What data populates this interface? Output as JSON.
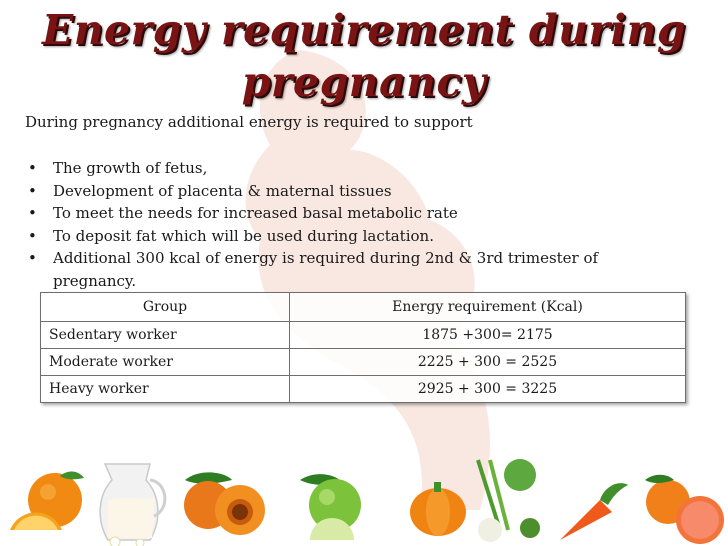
{
  "title": {
    "line1": "Energy  requirement during",
    "line2": "pregnancy"
  },
  "intro": "During pregnancy additional energy is required to support",
  "bullets": [
    "The growth of fetus,",
    "Development of placenta & maternal tissues",
    "To meet the needs for increased basal metabolic rate",
    "To deposit fat which will be used during lactation.",
    "Additional 300 kcal of energy is required during 2nd & 3rd trimester of pregnancy."
  ],
  "table": {
    "headers": [
      "Group",
      "Energy requirement (Kcal)"
    ],
    "rows": [
      {
        "group": "Sedentary worker",
        "requirement": "1875 +300= 2175"
      },
      {
        "group": "Moderate worker",
        "requirement": "2225 + 300 = 2525"
      },
      {
        "group": "Heavy worker",
        "requirement": "2925 + 300 = 3225"
      }
    ]
  },
  "colors": {
    "title": "#7a1414",
    "silhouette": "#f7e4dc"
  },
  "decor_icons": [
    "orange-icon",
    "milk-jug-icon",
    "peach-icon",
    "apple-icon",
    "pumpkin-icon",
    "vegetables-icon",
    "carrot-icon",
    "grapefruit-icon"
  ]
}
